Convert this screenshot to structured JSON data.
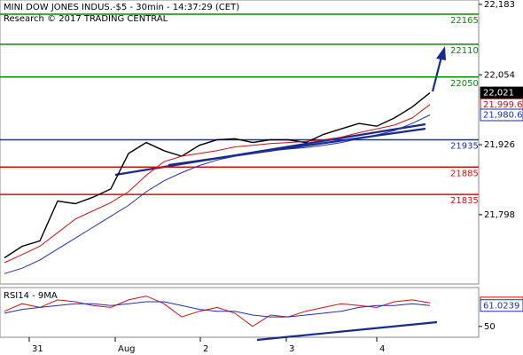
{
  "chart_data": [
    {
      "type": "line",
      "title": "MINI DOW JONES INDUS.-$5 - 30min - 14:37:29 (CET)",
      "subtitle": "Research © 2017 TRADING CENTRAL",
      "x": [
        0,
        1,
        2,
        3,
        4,
        5,
        6,
        7,
        8,
        9,
        10,
        11,
        12,
        13,
        14,
        15,
        16,
        17,
        18,
        19,
        20,
        21,
        22,
        23,
        24
      ],
      "xlim": [
        -0.25,
        26.75
      ],
      "ylim": [
        21671,
        22191
      ],
      "yticks": [
        {
          "value": 22183,
          "label": "22,183"
        },
        {
          "value": 22054,
          "label": "22,054"
        },
        {
          "value": 21926,
          "label": "21,926"
        },
        {
          "value": 21798,
          "label": "21,798"
        }
      ],
      "levels": [
        {
          "value": 22165,
          "color": "#0a8a0a"
        },
        {
          "value": 22110,
          "color": "#0a8a0a"
        },
        {
          "value": 22050,
          "color": "#0a8a0a"
        },
        {
          "value": 21935,
          "color": "#1f2fb0"
        },
        {
          "value": 21885,
          "color": "#cc1111"
        },
        {
          "value": 21835,
          "color": "#cc1111"
        }
      ],
      "series": [
        {
          "color": "#000000",
          "values": [
            21719,
            21740,
            21750,
            21823,
            21818,
            21830,
            21845,
            21910,
            21930,
            21915,
            21905,
            21925,
            21935,
            21937,
            21930,
            21935,
            21935,
            21930,
            21945,
            21955,
            21965,
            21960,
            21975,
            21995,
            22021
          ],
          "value_labels": [
            null,
            null,
            null,
            null,
            null,
            null,
            null,
            null,
            null,
            null,
            null,
            null,
            null,
            null,
            null,
            null,
            null,
            null,
            null,
            null,
            null,
            null,
            null,
            null,
            "22,021"
          ]
        },
        {
          "color": "#cc1111",
          "values": [
            21710,
            21725,
            21740,
            21765,
            21790,
            21805,
            21820,
            21840,
            21870,
            21895,
            21905,
            21910,
            21915,
            21922,
            21925,
            21928,
            21930,
            21932,
            21935,
            21940,
            21948,
            21955,
            21962,
            21975,
            21999.6
          ],
          "value_labels": [
            null,
            null,
            null,
            null,
            null,
            null,
            null,
            null,
            null,
            null,
            null,
            null,
            null,
            null,
            null,
            null,
            null,
            null,
            null,
            null,
            null,
            null,
            null,
            null,
            "21,999.6"
          ]
        },
        {
          "color": "#1f2fb0",
          "values": [
            21690,
            21700,
            21715,
            21735,
            21755,
            21775,
            21795,
            21815,
            21840,
            21860,
            21875,
            21888,
            21898,
            21905,
            21910,
            21915,
            21918,
            21921,
            21925,
            21930,
            21937,
            21944,
            21952,
            21965,
            21980.6
          ],
          "value_labels": [
            null,
            null,
            null,
            null,
            null,
            null,
            null,
            null,
            null,
            null,
            null,
            null,
            null,
            null,
            null,
            null,
            null,
            null,
            null,
            null,
            null,
            null,
            null,
            null,
            "21,980.6"
          ]
        }
      ]
    },
    {
      "type": "line",
      "title": "RSI14 - 9MA",
      "x": [
        0,
        1,
        2,
        3,
        4,
        5,
        6,
        7,
        8,
        9,
        10,
        11,
        12,
        13,
        14,
        15,
        16,
        17,
        18,
        19,
        20,
        21,
        22,
        23,
        24
      ],
      "xlim": [
        -0.25,
        26.75
      ],
      "ylim": [
        44.3,
        70.5
      ],
      "yticks": [
        50
      ],
      "xticks": [
        {
          "value": 1.4,
          "label": "31"
        },
        {
          "value": 6.25,
          "label": "Aug"
        },
        {
          "value": 11.05,
          "label": "2"
        },
        {
          "value": 15.9,
          "label": "3"
        },
        {
          "value": 21,
          "label": "4"
        }
      ],
      "series": [
        {
          "color": "#cc1111",
          "values": [
            58,
            62,
            60,
            64,
            63,
            61,
            60,
            64,
            66,
            62,
            55,
            58,
            60,
            57,
            50,
            56,
            55,
            58,
            60,
            62,
            61,
            60,
            63,
            64,
            62.4016
          ]
        },
        {
          "color": "#1f2fb0",
          "values": [
            57,
            59,
            60,
            61,
            62,
            62,
            61,
            62,
            63,
            63,
            61,
            59,
            58,
            58,
            56,
            55,
            55,
            56,
            57,
            58,
            60,
            61,
            61,
            62,
            61.0239
          ]
        }
      ]
    }
  ]
}
